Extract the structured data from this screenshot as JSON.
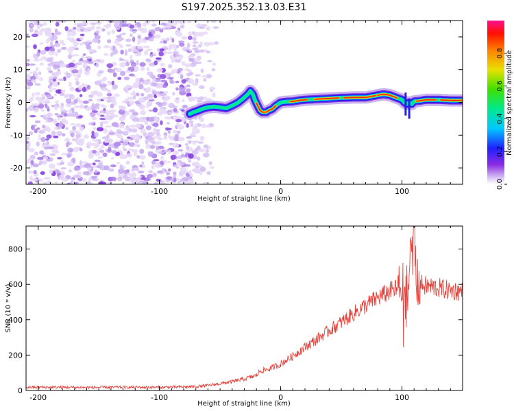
{
  "title": "S197.2025.352.13.03.E31",
  "chart_data": [
    {
      "type": "heatmap",
      "xlabel": "Height of straight line (km)",
      "ylabel": "Frequency (Hz)",
      "xlim": [
        -210,
        150
      ],
      "ylim": [
        -25,
        25
      ],
      "x_ticks": [
        -200,
        -100,
        0,
        100
      ],
      "y_ticks": [
        -20,
        -10,
        0,
        10,
        20
      ],
      "colorbar": {
        "label": "Normalized spectral amplitude",
        "range": [
          0,
          1
        ],
        "ticks": [
          0.0,
          0.2,
          0.4,
          0.6,
          0.8
        ]
      },
      "noise_region_x": [
        -210,
        -65
      ],
      "ridge": {
        "x": [
          -75,
          -72,
          -68,
          -65,
          -60,
          -55,
          -50,
          -45,
          -40,
          -35,
          -30,
          -27,
          -25,
          -23,
          -21,
          -19,
          -17,
          -15,
          -12,
          -10,
          -7,
          -4,
          -2,
          0,
          5,
          10,
          15,
          20,
          30,
          40,
          50,
          60,
          70,
          80,
          85,
          90,
          95,
          100,
          102,
          104,
          106,
          108,
          110,
          115,
          120,
          130,
          140,
          150
        ],
        "y": [
          -3.5,
          -3.0,
          -2.5,
          -2.0,
          -1.5,
          -1.3,
          -1.5,
          -1.8,
          -1.0,
          0.0,
          1.5,
          2.5,
          3.5,
          2.5,
          0.5,
          -1.0,
          -2.5,
          -3.0,
          -3.0,
          -2.5,
          -2.0,
          -1.0,
          -0.5,
          0.0,
          0.2,
          0.3,
          0.6,
          0.8,
          1.0,
          1.2,
          1.4,
          1.5,
          1.5,
          2.2,
          2.5,
          2.2,
          1.5,
          0.8,
          0.0,
          -0.5,
          0.0,
          -0.5,
          0.3,
          0.5,
          0.8,
          0.8,
          0.6,
          0.6
        ]
      }
    },
    {
      "type": "line",
      "xlabel": "Height of straight line (km)",
      "ylabel": "SNR (10 * v/v)",
      "xlim": [
        -210,
        150
      ],
      "ylim": [
        0,
        930
      ],
      "x_ticks": [
        -200,
        -100,
        0,
        100
      ],
      "y_ticks": [
        0,
        200,
        400,
        600,
        800
      ],
      "color": "#e8413a",
      "series": [
        {
          "x": [
            -210,
            -200,
            -180,
            -160,
            -140,
            -120,
            -100,
            -80,
            -70,
            -60,
            -50,
            -40,
            -30,
            -20,
            -17,
            -10,
            0,
            10,
            20,
            30,
            40,
            50,
            60,
            70,
            80,
            90,
            95,
            100,
            105,
            108,
            110,
            112,
            115,
            120,
            130,
            140,
            150
          ],
          "y": [
            18,
            18,
            18,
            17,
            18,
            18,
            18,
            20,
            22,
            28,
            38,
            50,
            65,
            85,
            110,
            120,
            150,
            195,
            245,
            290,
            340,
            385,
            435,
            480,
            525,
            560,
            575,
            580,
            600,
            760,
            880,
            600,
            600,
            590,
            580,
            565,
            560
          ]
        }
      ]
    }
  ]
}
